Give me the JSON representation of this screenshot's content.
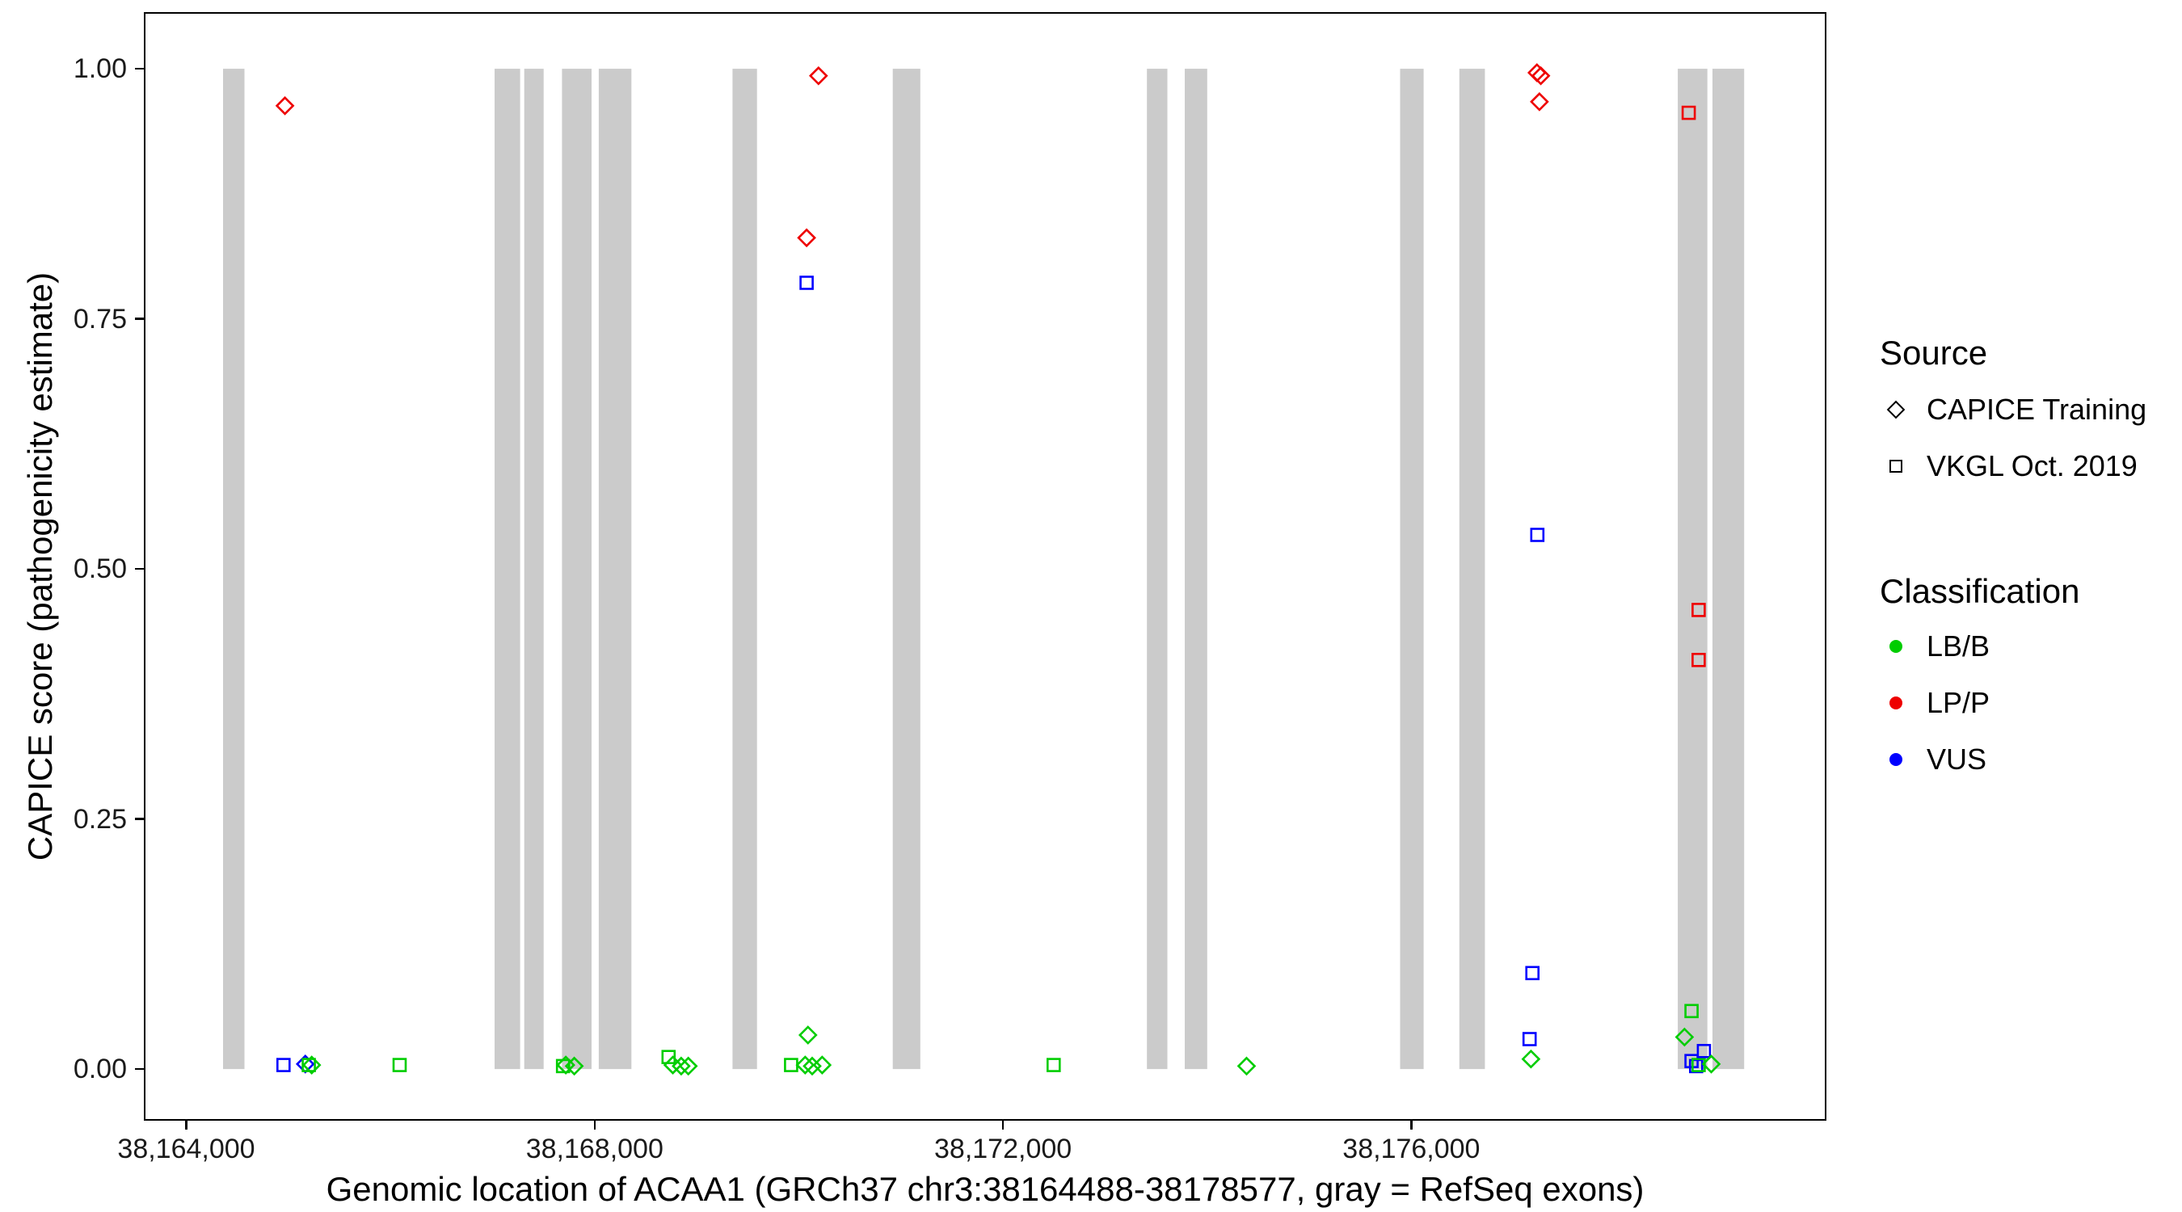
{
  "chart_data": {
    "type": "scatter",
    "title": "",
    "xlabel": "Genomic location of ACAA1 (GRCh37 chr3:38164488-38178577, gray = RefSeq exons)",
    "ylabel": "CAPICE score (pathogenicity estimate)",
    "xlim": [
      38163600,
      38180050
    ],
    "ylim": [
      -0.05,
      1.055
    ],
    "grid": "off",
    "legend_position": "right",
    "x_ticks": [
      {
        "value": 38164000,
        "label": "38,164,000"
      },
      {
        "value": 38168000,
        "label": "38,168,000"
      },
      {
        "value": 38172000,
        "label": "38,172,000"
      },
      {
        "value": 38176000,
        "label": "38,176,000"
      }
    ],
    "y_ticks": [
      {
        "value": 0.0,
        "label": "0.00"
      },
      {
        "value": 0.25,
        "label": "0.25"
      },
      {
        "value": 0.5,
        "label": "0.50"
      },
      {
        "value": 0.75,
        "label": "0.75"
      },
      {
        "value": 1.0,
        "label": "1.00"
      }
    ],
    "legend": {
      "source": {
        "title": "Source",
        "items": [
          {
            "label": "CAPICE Training",
            "shape": "diamond"
          },
          {
            "label": "VKGL Oct. 2019",
            "shape": "square"
          }
        ]
      },
      "classification": {
        "title": "Classification",
        "items": [
          {
            "label": "LB/B",
            "color": "#00CD00"
          },
          {
            "label": "LP/P",
            "color": "#EE0000"
          },
          {
            "label": "VUS",
            "color": "#0000FF"
          }
        ]
      }
    },
    "exon_color": "#CBCBCB",
    "exon_y_range": [
      0,
      1
    ],
    "exons": [
      [
        38164360,
        38164570
      ],
      [
        38167020,
        38167270
      ],
      [
        38167310,
        38167500
      ],
      [
        38167680,
        38167970
      ],
      [
        38168040,
        38168360
      ],
      [
        38169350,
        38169590
      ],
      [
        38170920,
        38171190
      ],
      [
        38173410,
        38173610
      ],
      [
        38173780,
        38174000
      ],
      [
        38175890,
        38176120
      ],
      [
        38176470,
        38176720
      ],
      [
        38178610,
        38178900
      ],
      [
        38178950,
        38179260
      ]
    ],
    "colors": {
      "LB/B": "#00CD00",
      "LP/P": "#EE0000",
      "VUS": "#0000FF"
    },
    "shapes": {
      "CAPICE Training": "diamond",
      "VKGL Oct. 2019": "square"
    },
    "points": [
      {
        "x": 38164952,
        "y": 0.004,
        "source": "VKGL Oct. 2019",
        "classification": "VUS"
      },
      {
        "x": 38164966,
        "y": 0.963,
        "source": "CAPICE Training",
        "classification": "LP/P"
      },
      {
        "x": 38165166,
        "y": 0.005,
        "source": "CAPICE Training",
        "classification": "VUS"
      },
      {
        "x": 38165200,
        "y": 0.004,
        "source": "VKGL Oct. 2019",
        "classification": "LB/B"
      },
      {
        "x": 38165228,
        "y": 0.004,
        "source": "CAPICE Training",
        "classification": "LB/B"
      },
      {
        "x": 38166090,
        "y": 0.004,
        "source": "VKGL Oct. 2019",
        "classification": "LB/B"
      },
      {
        "x": 38167690,
        "y": 0.003,
        "source": "VKGL Oct. 2019",
        "classification": "LB/B"
      },
      {
        "x": 38167717,
        "y": 0.004,
        "source": "CAPICE Training",
        "classification": "LB/B"
      },
      {
        "x": 38167800,
        "y": 0.003,
        "source": "CAPICE Training",
        "classification": "LB/B"
      },
      {
        "x": 38168724,
        "y": 0.012,
        "source": "VKGL Oct. 2019",
        "classification": "LB/B"
      },
      {
        "x": 38168766,
        "y": 0.004,
        "source": "CAPICE Training",
        "classification": "LB/B"
      },
      {
        "x": 38168848,
        "y": 0.003,
        "source": "CAPICE Training",
        "classification": "LB/B"
      },
      {
        "x": 38168917,
        "y": 0.003,
        "source": "CAPICE Training",
        "classification": "LB/B"
      },
      {
        "x": 38169924,
        "y": 0.004,
        "source": "VKGL Oct. 2019",
        "classification": "LB/B"
      },
      {
        "x": 38170062,
        "y": 0.004,
        "source": "CAPICE Training",
        "classification": "LB/B"
      },
      {
        "x": 38170076,
        "y": 0.831,
        "source": "CAPICE Training",
        "classification": "LP/P"
      },
      {
        "x": 38170076,
        "y": 0.786,
        "source": "VKGL Oct. 2019",
        "classification": "VUS"
      },
      {
        "x": 38170090,
        "y": 0.034,
        "source": "CAPICE Training",
        "classification": "LB/B"
      },
      {
        "x": 38170131,
        "y": 0.003,
        "source": "CAPICE Training",
        "classification": "LB/B"
      },
      {
        "x": 38170193,
        "y": 0.993,
        "source": "CAPICE Training",
        "classification": "LP/P"
      },
      {
        "x": 38170228,
        "y": 0.004,
        "source": "CAPICE Training",
        "classification": "LB/B"
      },
      {
        "x": 38172496,
        "y": 0.004,
        "source": "VKGL Oct. 2019",
        "classification": "LB/B"
      },
      {
        "x": 38174386,
        "y": 0.003,
        "source": "CAPICE Training",
        "classification": "LB/B"
      },
      {
        "x": 38177158,
        "y": 0.03,
        "source": "VKGL Oct. 2019",
        "classification": "VUS"
      },
      {
        "x": 38177172,
        "y": 0.01,
        "source": "CAPICE Training",
        "classification": "LB/B"
      },
      {
        "x": 38177186,
        "y": 0.096,
        "source": "VKGL Oct. 2019",
        "classification": "VUS"
      },
      {
        "x": 38177234,
        "y": 0.534,
        "source": "VKGL Oct. 2019",
        "classification": "VUS"
      },
      {
        "x": 38177230,
        "y": 0.996,
        "source": "CAPICE Training",
        "classification": "LP/P"
      },
      {
        "x": 38177268,
        "y": 0.993,
        "source": "CAPICE Training",
        "classification": "LP/P"
      },
      {
        "x": 38177255,
        "y": 0.967,
        "source": "CAPICE Training",
        "classification": "LP/P"
      },
      {
        "x": 38178676,
        "y": 0.032,
        "source": "CAPICE Training",
        "classification": "LB/B"
      },
      {
        "x": 38178717,
        "y": 0.956,
        "source": "VKGL Oct. 2019",
        "classification": "LP/P"
      },
      {
        "x": 38178745,
        "y": 0.058,
        "source": "VKGL Oct. 2019",
        "classification": "LB/B"
      },
      {
        "x": 38178745,
        "y": 0.008,
        "source": "VKGL Oct. 2019",
        "classification": "VUS"
      },
      {
        "x": 38178790,
        "y": 0.003,
        "source": "VKGL Oct. 2019",
        "classification": "VUS"
      },
      {
        "x": 38178814,
        "y": 0.459,
        "source": "VKGL Oct. 2019",
        "classification": "LP/P"
      },
      {
        "x": 38178814,
        "y": 0.409,
        "source": "VKGL Oct. 2019",
        "classification": "LP/P"
      },
      {
        "x": 38178814,
        "y": 0.004,
        "source": "VKGL Oct. 2019",
        "classification": "LB/B"
      },
      {
        "x": 38178866,
        "y": 0.018,
        "source": "VKGL Oct. 2019",
        "classification": "VUS"
      },
      {
        "x": 38178938,
        "y": 0.005,
        "source": "CAPICE Training",
        "classification": "LB/B"
      }
    ]
  }
}
